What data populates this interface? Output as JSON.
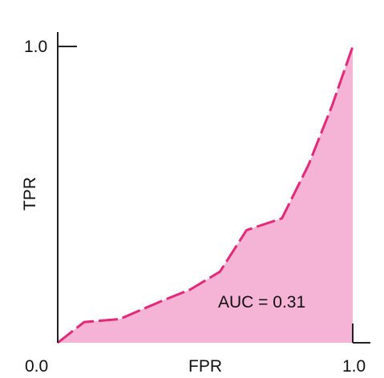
{
  "chart_data": {
    "type": "area",
    "title": "",
    "xlabel": "FPR",
    "ylabel": "TPR",
    "xlim": [
      0,
      1
    ],
    "ylim": [
      0,
      1
    ],
    "x_tick_labels": [
      "0.0",
      "1.0"
    ],
    "y_tick_labels": [
      "1.0"
    ],
    "grid": false,
    "annotation": "AUC = 0.31",
    "x": [
      0.0,
      0.09,
      0.21,
      0.35,
      0.45,
      0.55,
      0.64,
      0.76,
      0.85,
      0.93,
      1.0
    ],
    "y": [
      0.0,
      0.07,
      0.08,
      0.14,
      0.18,
      0.24,
      0.38,
      0.42,
      0.6,
      0.8,
      1.0
    ],
    "colors": {
      "fill": "#f5b3d6",
      "line": "#e6277a",
      "axis": "#222222"
    }
  }
}
